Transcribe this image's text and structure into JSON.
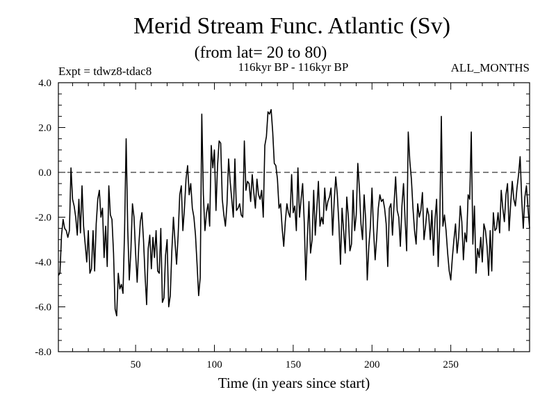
{
  "chart_data": {
    "type": "line",
    "title": "Merid Stream Func. Atlantic (Sv)",
    "subtitle": "(from lat= 20 to 80)",
    "header_left": "Expt = tdwz8-tdac8",
    "header_center": "116kyr BP - 116kyr BP",
    "header_right": "ALL_MONTHS",
    "xlabel": "Time (in years since start)",
    "ylabel": "",
    "xlim": [
      1,
      300
    ],
    "ylim": [
      -8,
      4
    ],
    "x_ticks": [
      50,
      100,
      150,
      200,
      250
    ],
    "y_ticks": [
      -8,
      -6,
      -4,
      -2,
      0,
      2,
      4
    ],
    "y_tick_labels": [
      "-8.0",
      "-6.0",
      "-4.0",
      "-2.0",
      "0.0",
      "2.0",
      "4.0"
    ],
    "reference_line": {
      "y": 0,
      "style": "dashed"
    },
    "series": [
      {
        "values": [
          -4.6,
          -4.5,
          -2.8,
          -2.1,
          -2.5,
          -2.6,
          -2.9,
          -2.6,
          0.2,
          -1.2,
          -1.5,
          -2.0,
          -2.8,
          -1.2,
          -2.7,
          -0.6,
          -2.4,
          -3.2,
          -4.0,
          -2.6,
          -4.5,
          -4.3,
          -2.6,
          -4.4,
          -2.3,
          -1.2,
          -0.8,
          -2.0,
          -1.6,
          -3.8,
          -2.4,
          -4.2,
          -0.6,
          -1.9,
          -2.1,
          -3.6,
          -6.1,
          -6.4,
          -4.5,
          -5.2,
          -5.0,
          -5.4,
          -2.6,
          1.5,
          -2.5,
          -4.8,
          -3.5,
          -1.4,
          -2.0,
          -3.6,
          -4.9,
          -3.3,
          -2.2,
          -1.8,
          -3.0,
          -4.6,
          -5.9,
          -3.4,
          -2.8,
          -4.3,
          -2.9,
          -3.8,
          -2.6,
          -4.4,
          -4.5,
          -2.5,
          -5.8,
          -5.6,
          -3.7,
          -3.0,
          -6.0,
          -5.5,
          -3.5,
          -2.0,
          -3.1,
          -4.1,
          -2.8,
          -1.0,
          -0.6,
          -2.6,
          -1.6,
          -0.3,
          0.3,
          -1.0,
          -0.5,
          -1.6,
          -2.0,
          -2.8,
          -4.1,
          -5.5,
          -4.7,
          2.6,
          -1.0,
          -2.6,
          -1.8,
          -1.4,
          -2.4,
          1.2,
          0.2,
          1.0,
          -1.7,
          0.3,
          1.4,
          1.3,
          -1.2,
          -1.9,
          -2.4,
          -1.4,
          0.6,
          -0.4,
          -1.2,
          -2.0,
          0.6,
          -1.7,
          -1.6,
          -1.4,
          -1.9,
          -2.0,
          1.4,
          -0.8,
          -0.4,
          -0.5,
          -1.3,
          -0.1,
          -0.9,
          -1.6,
          -0.3,
          -1.0,
          -1.2,
          -0.8,
          -2.0,
          1.2,
          1.6,
          2.7,
          2.6,
          2.8,
          1.8,
          0.4,
          0.3,
          -0.3,
          -1.6,
          -1.4,
          -2.5,
          -3.3,
          -2.2,
          -1.4,
          -1.8,
          -2.0,
          -0.1,
          -1.8,
          -1.5,
          -2.6,
          0.2,
          -2.0,
          -1.2,
          -0.5,
          -2.2,
          -4.8,
          -2.9,
          -1.3,
          -3.6,
          -3.0,
          -0.8,
          -2.8,
          -1.6,
          -0.4,
          -2.4,
          -2.0,
          -2.3,
          -0.7,
          -1.7,
          -1.3,
          -1.1,
          -0.7,
          -2.8,
          -1.3,
          -0.2,
          -1.0,
          -2.3,
          -4.1,
          -1.6,
          -2.6,
          -3.6,
          -1.1,
          -2.0,
          -3.5,
          -3.2,
          -0.8,
          -2.6,
          -1.9,
          0.4,
          -0.7,
          -2.3,
          -3.0,
          -1.0,
          -2.1,
          -4.8,
          -3.3,
          -2.4,
          -0.7,
          -2.6,
          -3.9,
          -2.9,
          -1.6,
          -1.0,
          -1.3,
          -1.2,
          -1.6,
          -2.3,
          -4.2,
          -1.6,
          -1.4,
          -2.8,
          -1.4,
          -0.2,
          -1.7,
          -2.0,
          -3.3,
          -1.5,
          -0.5,
          -2.1,
          -3.5,
          1.8,
          0.5,
          -0.3,
          -1.6,
          -2.6,
          -3.2,
          -1.4,
          -2.0,
          -1.7,
          -0.9,
          -3.0,
          -2.4,
          -1.6,
          -1.9,
          -3.0,
          -1.7,
          -3.7,
          -2.1,
          -1.2,
          -4.2,
          -2.3,
          2.5,
          -2.4,
          -1.9,
          -2.6,
          -3.6,
          -4.4,
          -4.8,
          -3.8,
          -3.0,
          -2.3,
          -3.6,
          -2.9,
          -1.5,
          -2.2,
          -3.9,
          -2.7,
          -3.1,
          -1.0,
          -1.2,
          1.8,
          -3.2,
          -1.5,
          -4.5,
          -3.4,
          -3.8,
          -2.9,
          -4.0,
          -2.3,
          -2.6,
          -3.3,
          -4.6,
          -2.6,
          -4.4,
          -1.8,
          -2.6,
          -2.5,
          -1.8,
          -2.7,
          -0.8,
          -1.6,
          -2.2,
          -1.0,
          -0.5,
          -2.6,
          -1.4,
          -0.4,
          -1.2,
          -1.5,
          -0.7,
          -0.1,
          0.7,
          -1.2,
          -2.5,
          -1.1,
          -0.6,
          -1.6,
          -2.5
        ]
      }
    ]
  }
}
